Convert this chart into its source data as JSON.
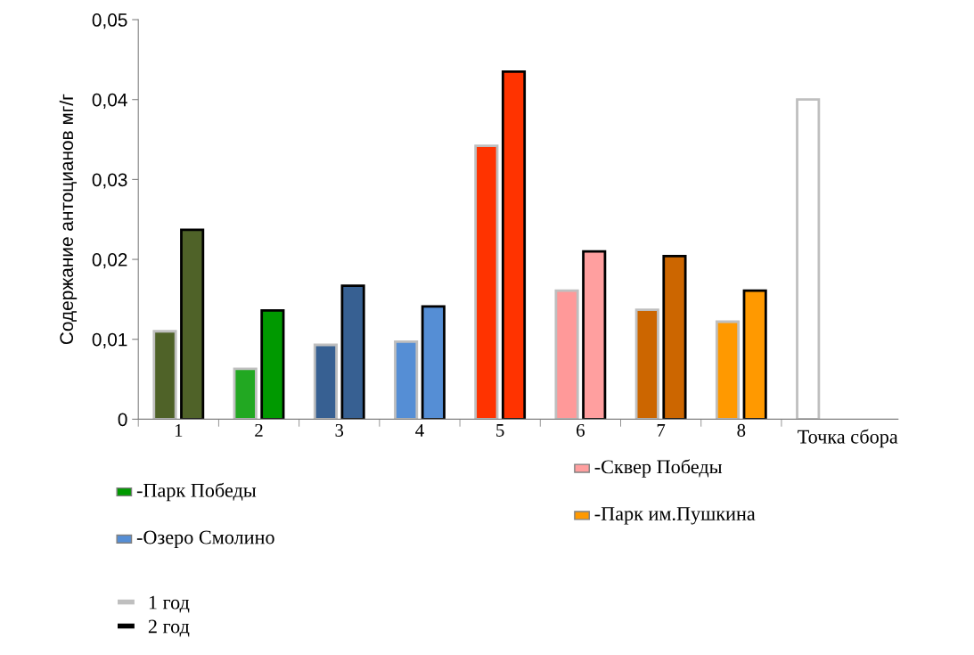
{
  "chart_data": {
    "type": "bar",
    "ylabel": "Содержание антоцианов мг/г",
    "xlabel": "Точка сбора",
    "categories": [
      "1",
      "2",
      "3",
      "4",
      "5",
      "6",
      "7",
      "8",
      null
    ],
    "series": [
      {
        "name": "1 год",
        "color": "#bfbfbf",
        "colors": [
          "#4f6228",
          "#22a822",
          "#376092",
          "#558ed5",
          "#ff3300",
          "#ff9999",
          "#cc6600",
          "#ff9900",
          "#ffffff"
        ],
        "values": [
          0.011,
          0.0063,
          0.0093,
          0.0097,
          0.0342,
          0.0161,
          0.0137,
          0.0122,
          0.04
        ]
      },
      {
        "name": "2 год",
        "color": "#000000",
        "colors": [
          "#4f6228",
          "#009900",
          "#376092",
          "#558ed5",
          "#ff3300",
          "#ff9f9f",
          "#cc6600",
          "#ff9900",
          null
        ],
        "values": [
          0.0237,
          0.0136,
          0.0167,
          0.0141,
          0.0435,
          0.021,
          0.0204,
          0.0161,
          null
        ]
      }
    ],
    "ylim": [
      0,
      0.05
    ],
    "yticks": [
      0,
      {
        "value": 0.01,
        "label": "0,01"
      },
      {
        "value": 0.02,
        "label": "0,02"
      },
      {
        "value": 0.03,
        "label": "0,03"
      },
      {
        "value": 0.04,
        "label": "0,04"
      },
      {
        "value": 0.05,
        "label": "0,05"
      }
    ],
    "annotations": [
      "-Парк Победы",
      "-Озеро Смолино",
      "-Сквер Победы",
      "-Парк им.Пушкина"
    ],
    "legend": "bottom",
    "grid": false
  }
}
